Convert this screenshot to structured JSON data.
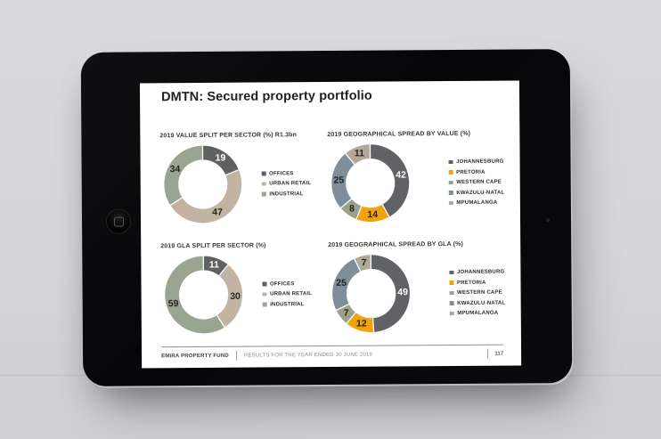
{
  "device": {
    "background_color": "#d7d7da",
    "bezel_color": "#0a0a0c",
    "screen_color": "#ffffff"
  },
  "slide": {
    "title": "DMTN: Secured property portfolio",
    "footer": {
      "brand": "EMIRA PROPERTY FUND",
      "subtitle": "RESULTS FOR THE YEAR ENDED 30 JUNE 2019",
      "page_number": "117"
    }
  },
  "palette": {
    "offices": "#5f6060",
    "urban_retail": "#c2b3a3",
    "industrial": "#9aa591",
    "johannesburg": "#616266",
    "pretoria": "#f0a30a",
    "western_cape": "#99a18c",
    "kwazulu_natal": "#7e8f99",
    "mpumalanga": "#b2a89a"
  },
  "chart_data": [
    {
      "type": "pie",
      "variant": "donut",
      "title": "2019 VALUE SPLIT PER SECTOR (%) R1.3bn",
      "categories": [
        "OFFICES",
        "URBAN RETAIL",
        "INDUSTRIAL"
      ],
      "values": [
        19,
        47,
        34
      ],
      "colors": [
        "#5f6060",
        "#c2b3a3",
        "#9aa591"
      ],
      "label_colors": [
        "#ffffff",
        "#26231f",
        "#26231f"
      ],
      "legend_position": "right",
      "value_labels": "inside",
      "start_angle_deg": 0,
      "direction": "clockwise"
    },
    {
      "type": "pie",
      "variant": "donut",
      "title": "2019 GEOGRAPHICAL SPREAD BY VALUE (%)",
      "categories": [
        "JOHANNESBURG",
        "PRETORIA",
        "WESTERN CAPE",
        "KWAZULU-NATAL",
        "MPUMALANGA"
      ],
      "values": [
        42,
        14,
        8,
        25,
        11
      ],
      "colors": [
        "#616266",
        "#f0a30a",
        "#99a18c",
        "#7e8f99",
        "#b2a89a"
      ],
      "label_colors": [
        "#ffffff",
        "#26231f",
        "#26231f",
        "#1e2226",
        "#26231f"
      ],
      "legend_position": "right",
      "value_labels": "inside",
      "start_angle_deg": 0,
      "direction": "clockwise"
    },
    {
      "type": "pie",
      "variant": "donut",
      "title": "2019 GLA SPLIT PER SECTOR (%)",
      "categories": [
        "OFFICES",
        "URBAN RETAIL",
        "INDUSTRIAL"
      ],
      "values": [
        11,
        30,
        59
      ],
      "colors": [
        "#5f6060",
        "#c2b3a3",
        "#9aa591"
      ],
      "label_colors": [
        "#ffffff",
        "#26231f",
        "#26231f"
      ],
      "legend_position": "right",
      "value_labels": "inside",
      "start_angle_deg": 0,
      "direction": "clockwise"
    },
    {
      "type": "pie",
      "variant": "donut",
      "title": "2019 GEOGRAPHICAL SPREAD BY GLA (%)",
      "categories": [
        "JOHANNESBURG",
        "PRETORIA",
        "WESTERN CAPE",
        "KWAZULU-NATAL",
        "MPUMALANGA"
      ],
      "values": [
        49,
        12,
        7,
        25,
        7
      ],
      "colors": [
        "#616266",
        "#f0a30a",
        "#99a18c",
        "#7e8f99",
        "#b2a89a"
      ],
      "label_colors": [
        "#ffffff",
        "#26231f",
        "#26231f",
        "#1e2226",
        "#26231f"
      ],
      "legend_position": "right",
      "value_labels": "inside",
      "start_angle_deg": 0,
      "direction": "clockwise"
    }
  ]
}
